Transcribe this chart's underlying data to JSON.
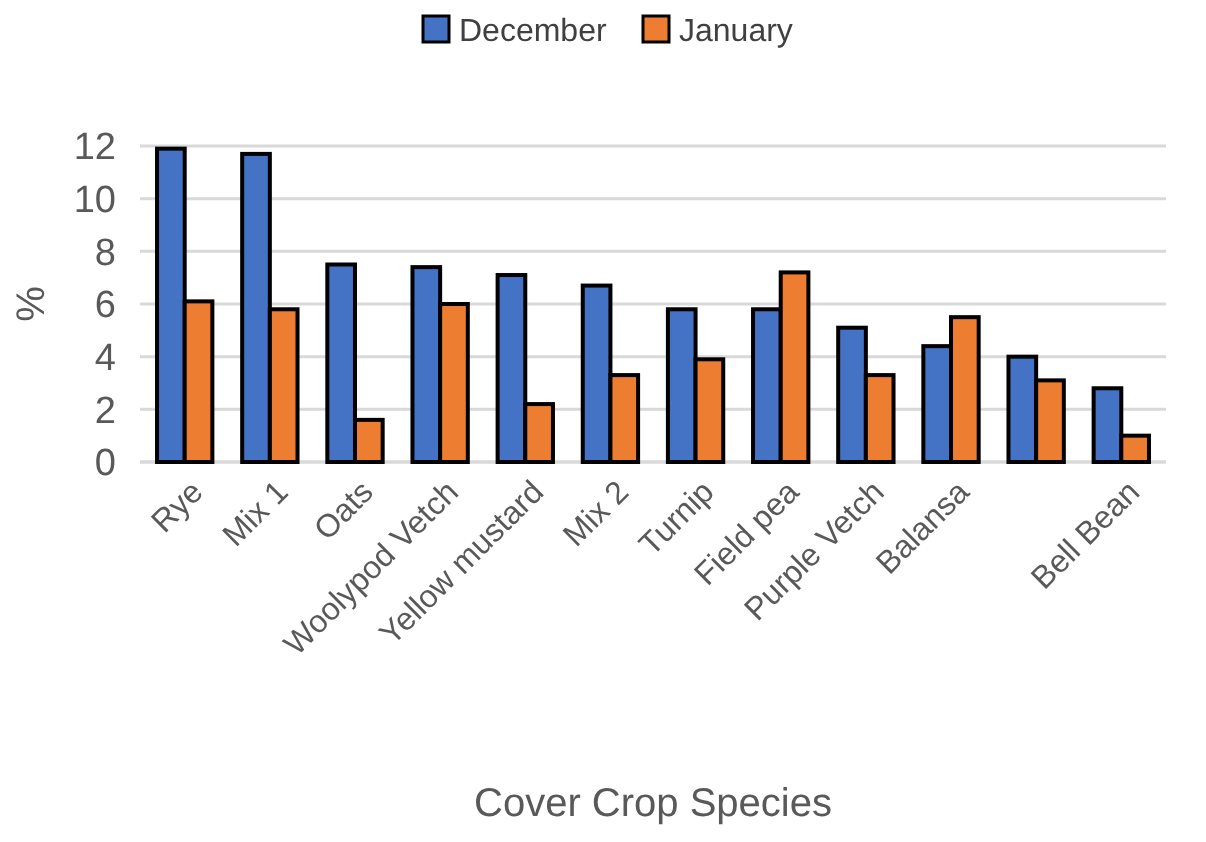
{
  "chart_data": {
    "type": "bar",
    "xlabel": "Cover Crop Species",
    "ylabel": "%",
    "categories": [
      "Rye",
      "Mix 1",
      "Oats",
      "Woolypod Vetch",
      "Yellow mustard",
      "Mix 2",
      "Turnip",
      "Field pea",
      "Purple Vetch",
      "Balansa",
      null,
      "Bell Bean"
    ],
    "series": [
      {
        "name": "December",
        "color": "#4472c4",
        "values": [
          11.9,
          11.7,
          7.5,
          7.4,
          7.1,
          6.7,
          5.8,
          5.8,
          5.1,
          4.4,
          4.0,
          2.8
        ]
      },
      {
        "name": "January",
        "color": "#ed7d31",
        "values": [
          6.1,
          5.8,
          1.6,
          6.0,
          2.2,
          3.3,
          3.9,
          7.2,
          3.3,
          5.5,
          3.1,
          1.0
        ]
      }
    ],
    "ylim": [
      0,
      12
    ],
    "yticks": [
      0,
      2,
      4,
      6,
      8,
      10,
      12
    ],
    "grid": "y",
    "legend": "top"
  }
}
